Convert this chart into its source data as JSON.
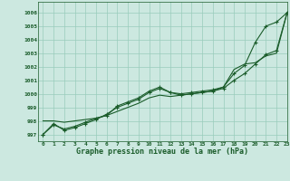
{
  "title": "Graphe pression niveau de la mer (hPa)",
  "background_color": "#cce8e0",
  "grid_color": "#99ccbb",
  "line_color": "#1a5c2a",
  "xlim": [
    -0.5,
    23
  ],
  "ylim": [
    996.5,
    1006.8
  ],
  "yticks": [
    997,
    998,
    999,
    1000,
    1001,
    1002,
    1003,
    1004,
    1005,
    1006
  ],
  "xticks": [
    0,
    1,
    2,
    3,
    4,
    5,
    6,
    7,
    8,
    9,
    10,
    11,
    12,
    13,
    14,
    15,
    16,
    17,
    18,
    19,
    20,
    21,
    22,
    23
  ],
  "series1": [
    997.0,
    997.8,
    997.3,
    997.5,
    997.8,
    998.1,
    998.5,
    999.0,
    999.3,
    999.6,
    1000.1,
    1000.4,
    1000.1,
    999.9,
    1000.0,
    1000.1,
    1000.2,
    1000.4,
    1001.0,
    1001.5,
    1002.2,
    1002.9,
    1003.2,
    1006.0
  ],
  "series2": [
    997.0,
    997.7,
    997.4,
    997.6,
    997.9,
    998.2,
    998.4,
    999.1,
    999.4,
    999.7,
    1000.2,
    1000.5,
    1000.1,
    1000.0,
    1000.1,
    1000.2,
    1000.3,
    1000.5,
    1001.5,
    1002.1,
    1003.8,
    1005.0,
    1005.3,
    1006.0
  ],
  "series3": [
    998.0,
    998.0,
    997.9,
    998.0,
    998.1,
    998.2,
    998.4,
    998.7,
    999.0,
    999.3,
    999.7,
    999.9,
    999.8,
    999.9,
    1000.0,
    1000.1,
    1000.2,
    1000.5,
    1001.8,
    1002.2,
    1002.3,
    1002.8,
    1003.0,
    1006.0
  ]
}
